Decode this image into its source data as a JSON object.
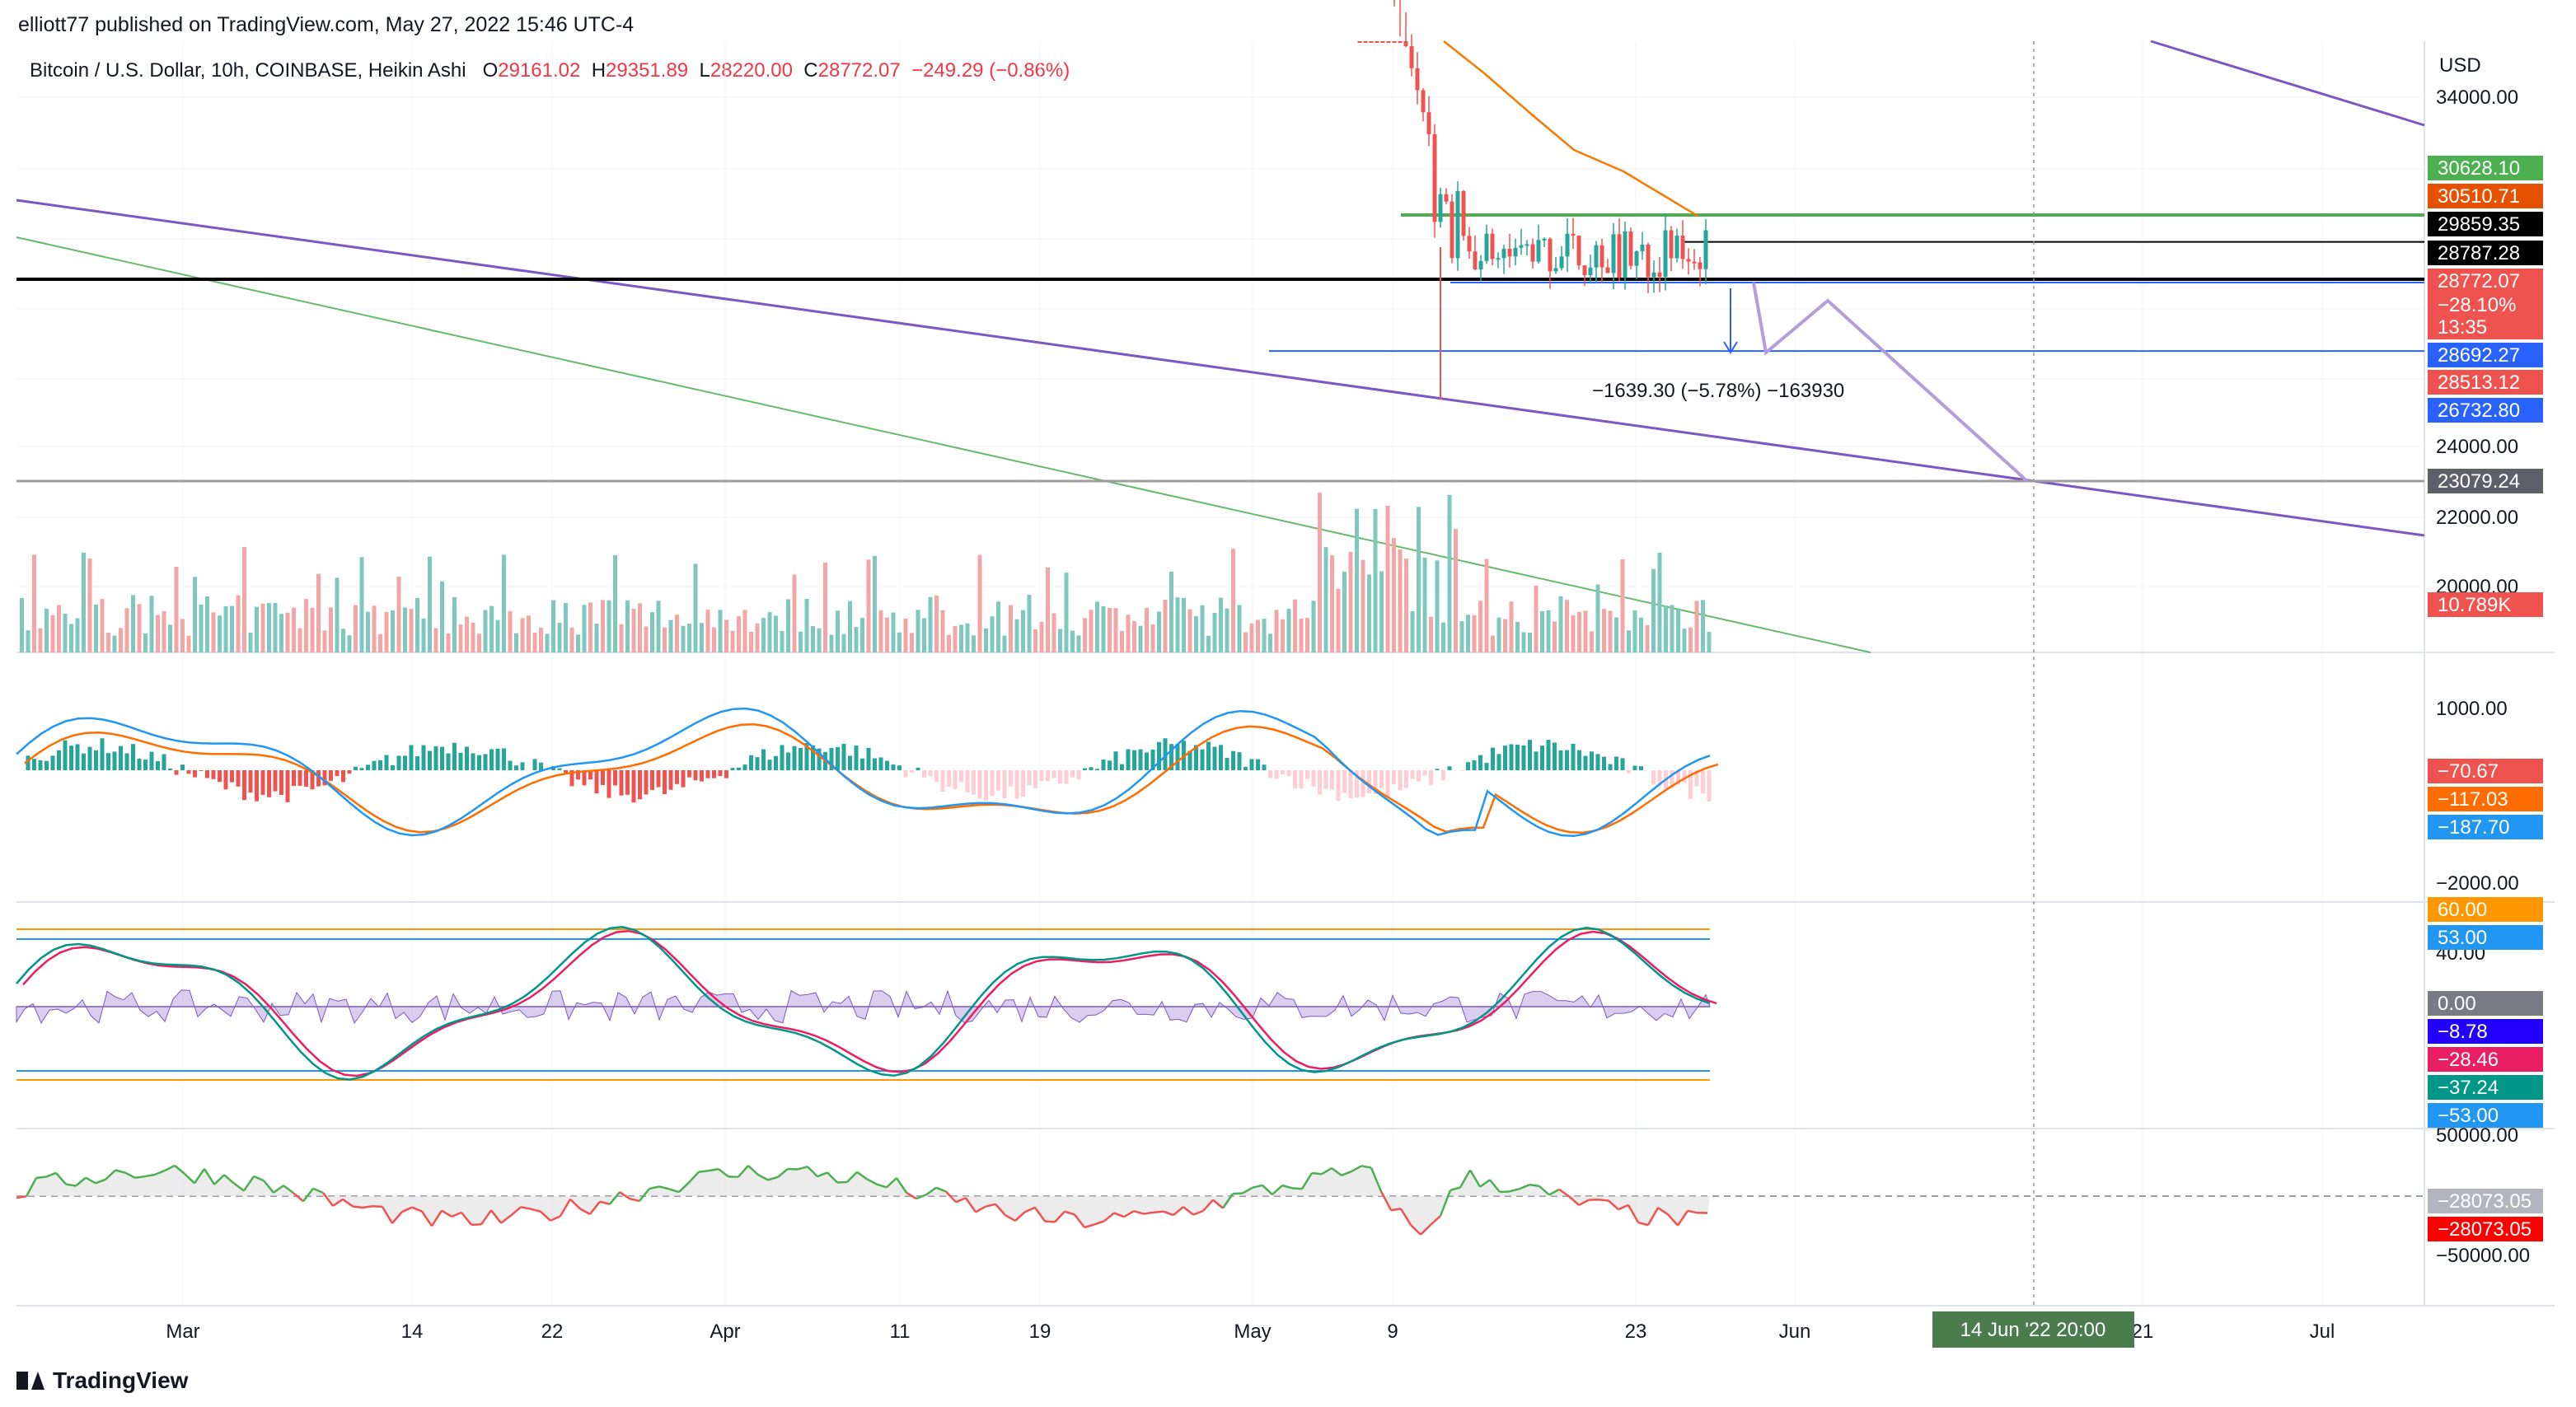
{
  "header": {
    "published_text": "elliott77 published on TradingView.com, May 27, 2022 15:46 UTC-4"
  },
  "legend": {
    "symbol": "Bitcoin / U.S. Dollar, 10h, COINBASE, Heikin Ashi",
    "o_label": "O",
    "o_value": "29161.02",
    "h_label": "H",
    "h_value": "29351.89",
    "l_label": "L",
    "l_value": "28220.00",
    "c_label": "C",
    "c_value": "28772.07",
    "change": "−249.29 (−0.86%)"
  },
  "footer": {
    "brand": "TradingView"
  },
  "chart_data": {
    "type": "candlestick",
    "currency": "USD",
    "x_ticks": [
      "Mar",
      "14",
      "22",
      "Apr",
      "11",
      "19",
      "May",
      "9",
      "23",
      "Jun",
      "21",
      "Jul"
    ],
    "crosshair_time_label": "14 Jun '22   20:00",
    "price_axis_ticks": [
      "34000.00",
      "24000.00",
      "22000.00",
      "20000.00"
    ],
    "price_labels": [
      {
        "text": "30628.10",
        "color": "#4caf50",
        "price": 30628.1
      },
      {
        "text": "30510.71",
        "color": "#e65100",
        "price": 30510.71
      },
      {
        "text": "29859.35",
        "color": "#000000",
        "price": 29859.35
      },
      {
        "text": "28787.28",
        "color": "#000000",
        "price": 28787.28
      },
      {
        "text": "28772.07",
        "color": "#ef5350",
        "price": 28772.07
      },
      {
        "text": "−28.10%",
        "color": "#ef5350",
        "price": null
      },
      {
        "text": "13:35",
        "color": "#ef5350",
        "price": null
      },
      {
        "text": "28692.27",
        "color": "#2962ff",
        "price": 28692.27
      },
      {
        "text": "28513.12",
        "color": "#ef5350",
        "price": 28513.12
      },
      {
        "text": "26732.80",
        "color": "#2962ff",
        "price": 26732.8
      },
      {
        "text": "23079.24",
        "color": "#5d606b",
        "price": 23079.24
      },
      {
        "text": "10.789K",
        "color": "#ef5350",
        "price": null
      }
    ],
    "measure_annotation": "−1639.30 (−5.78%) −163930",
    "macd": {
      "axis_ticks": [
        "1000.00",
        "−2000.00"
      ],
      "labels": [
        {
          "text": "−70.67",
          "color": "#ef5350"
        },
        {
          "text": "−117.03",
          "color": "#ff6d00"
        },
        {
          "text": "−187.70",
          "color": "#2196f3"
        }
      ]
    },
    "stoch_rsi": {
      "axis_ticks": [
        "40.00"
      ],
      "labels": [
        {
          "text": "60.00",
          "color": "#ff9800"
        },
        {
          "text": "53.00",
          "color": "#2196f3"
        },
        {
          "text": "0.00",
          "color": "#787b86"
        },
        {
          "text": "−8.78",
          "color": "#2200ff"
        },
        {
          "text": "−28.46",
          "color": "#e91e63"
        },
        {
          "text": "−37.24",
          "color": "#009688"
        },
        {
          "text": "−53.00",
          "color": "#2196f3"
        }
      ]
    },
    "osc": {
      "axis_ticks": [
        "50000.00",
        "−50000.00"
      ],
      "labels": [
        {
          "text": "−28073.05",
          "color": "#b2b5be"
        },
        {
          "text": "−28073.05",
          "color": "#ff0000"
        }
      ]
    },
    "colors": {
      "up": "#26a69a",
      "down": "#ef5350",
      "grid": "#f0f3fa"
    }
  }
}
